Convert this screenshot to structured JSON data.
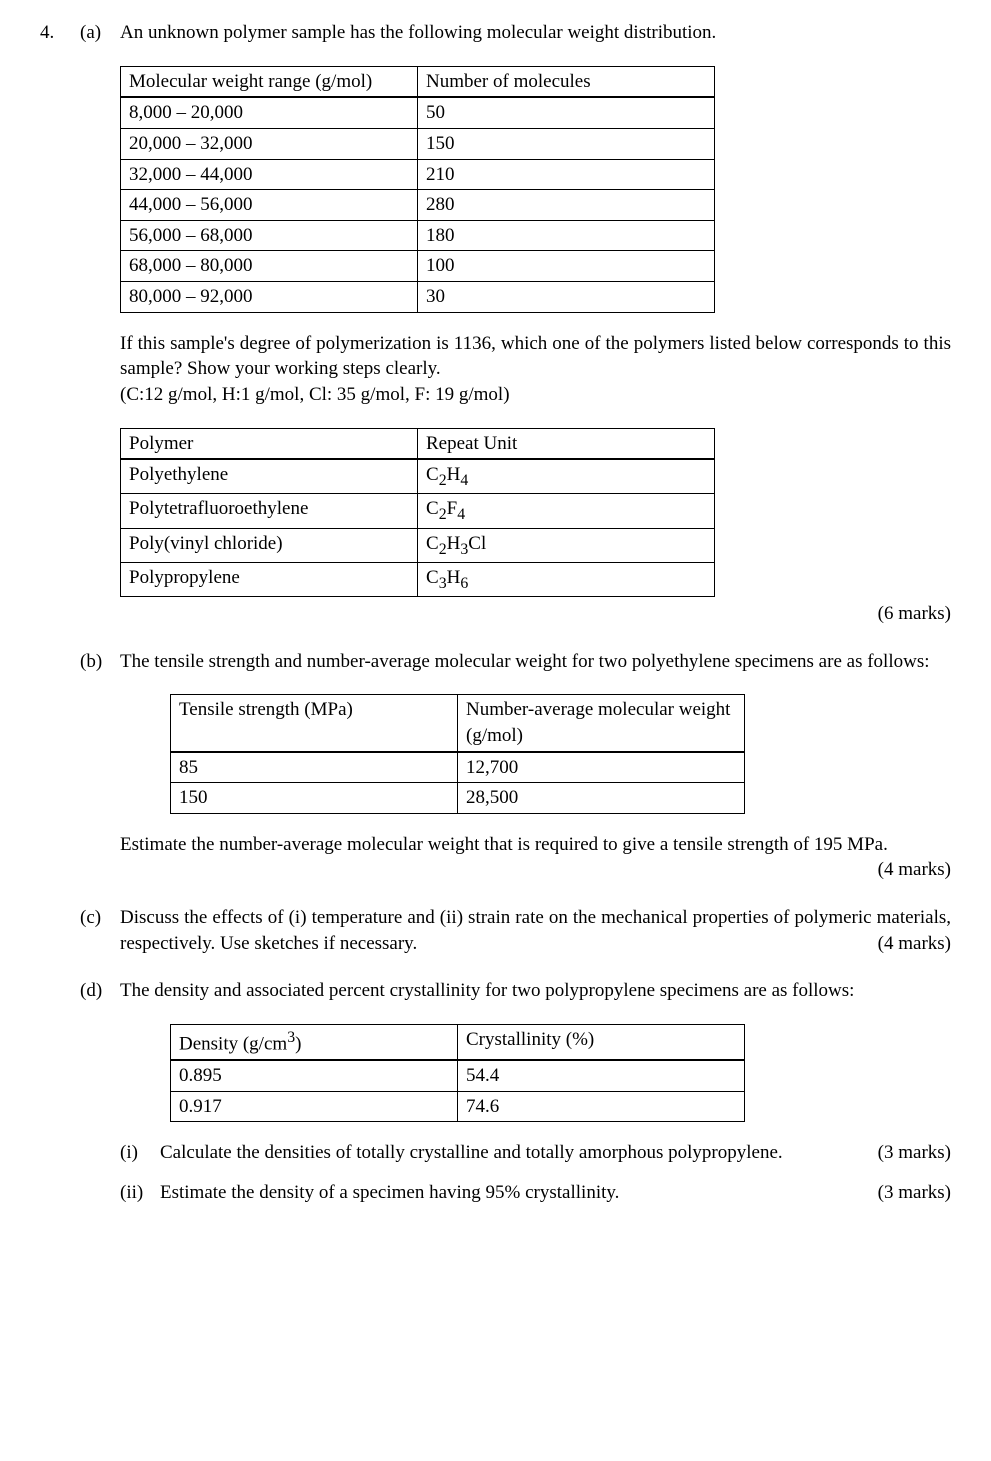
{
  "question_number": "4.",
  "a": {
    "label": "(a)",
    "intro": "An unknown polymer sample has the following molecular weight distribution.",
    "table1": {
      "col1": "Molecular weight range (g/mol)",
      "col2": "Number of molecules",
      "col1_width": 280,
      "col2_width": 280,
      "rows": [
        {
          "c1": "8,000 – 20,000",
          "c2": "50"
        },
        {
          "c1": "20,000 – 32,000",
          "c2": "150"
        },
        {
          "c1": "32,000 – 44,000",
          "c2": "210"
        },
        {
          "c1": "44,000 – 56,000",
          "c2": "280"
        },
        {
          "c1": "56,000 – 68,000",
          "c2": "180"
        },
        {
          "c1": "68,000 – 80,000",
          "c2": "100"
        },
        {
          "c1": "80,000 – 92,000",
          "c2": "30"
        }
      ]
    },
    "mid1": "If this sample's degree of polymerization is 1136, which one of the polymers listed below corresponds to this sample? Show your working steps clearly.",
    "mid2": "(C:12 g/mol, H:1 g/mol, Cl: 35 g/mol, F: 19 g/mol)",
    "table2": {
      "col1": "Polymer",
      "col2": "Repeat Unit",
      "col1_width": 280,
      "col2_width": 280,
      "rows": [
        {
          "name": "Polyethylene",
          "formula_html": "C<sub>2</sub>H<sub>4</sub>"
        },
        {
          "name": "Polytetrafluoroethylene",
          "formula_html": "C<sub>2</sub>F<sub>4</sub>"
        },
        {
          "name": "Poly(vinyl chloride)",
          "formula_html": "C<sub>2</sub>H<sub>3</sub>Cl"
        },
        {
          "name": "Polypropylene",
          "formula_html": "C<sub>3</sub>H<sub>6</sub>"
        }
      ]
    },
    "marks": "(6 marks)"
  },
  "b": {
    "label": "(b)",
    "intro": "The tensile strength and number-average molecular weight for two polyethylene specimens are as follows:",
    "table": {
      "col1": "Tensile strength (MPa)",
      "col2": "Number-average molecular weight (g/mol)",
      "col1_width": 270,
      "col2_width": 270,
      "rows": [
        {
          "c1": "85",
          "c2": "12,700"
        },
        {
          "c1": "150",
          "c2": "28,500"
        }
      ]
    },
    "after": "Estimate the number-average molecular weight that is required to give a tensile strength of 195 MPa.",
    "marks": "(4 marks)"
  },
  "c": {
    "label": "(c)",
    "text": "Discuss the effects of (i) temperature and (ii) strain rate on the mechanical properties of polymeric materials, respectively. Use sketches if necessary.",
    "marks": "(4 marks)"
  },
  "d": {
    "label": "(d)",
    "intro": "The density and associated percent crystallinity for two polypropylene specimens are as follows:",
    "table": {
      "col1_html": "Density (g/cm<sup>3</sup>)",
      "col2": "Crystallinity (%)",
      "col1_width": 270,
      "col2_width": 270,
      "rows": [
        {
          "c1": "0.895",
          "c2": "54.4"
        },
        {
          "c1": "0.917",
          "c2": "74.6"
        }
      ]
    },
    "i": {
      "label": "(i)",
      "text": "Calculate the densities of totally crystalline and totally amorphous polypropylene.",
      "marks": "(3 marks)"
    },
    "ii": {
      "label": "(ii)",
      "text": "Estimate the density of a specimen having 95% crystallinity.",
      "marks": "(3 marks)"
    }
  }
}
